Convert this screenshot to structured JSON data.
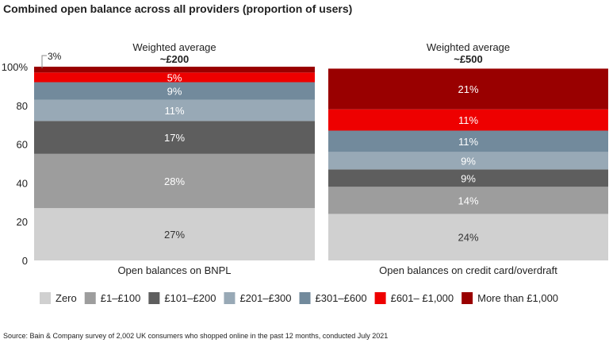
{
  "chart_data": {
    "type": "bar",
    "stacked": true,
    "title": "Combined open balance across all providers (proportion of users)",
    "source": "Source: Bain & Company survey of 2,002 UK consumers who shopped online in the past 12 months, conducted July 2021",
    "categories": [
      "Open balances on BNPL",
      "Open balances on credit card/overdraft"
    ],
    "annotations": [
      {
        "line1": "Weighted average",
        "line2": "~£200"
      },
      {
        "line1": "Weighted average",
        "line2": "~£500"
      }
    ],
    "yticks": [
      "0",
      "20",
      "40",
      "60",
      "80",
      "100%"
    ],
    "ylim": [
      0,
      100
    ],
    "grid": false,
    "legend_position": "bottom",
    "series": [
      {
        "name": "Zero",
        "color": "#d0d0d0",
        "values": [
          27,
          24
        ],
        "labels": [
          "27%",
          "24%"
        ]
      },
      {
        "name": "£1–£100",
        "color": "#9d9d9d",
        "values": [
          28,
          14
        ],
        "labels": [
          "28%",
          "14%"
        ]
      },
      {
        "name": "£101–£200",
        "color": "#5e5e5e",
        "values": [
          17,
          9
        ],
        "labels": [
          "17%",
          "9%"
        ]
      },
      {
        "name": "£201–£300",
        "color": "#98a9b6",
        "values": [
          11,
          9
        ],
        "labels": [
          "11%",
          "9%"
        ]
      },
      {
        "name": "£301–£600",
        "color": "#728a9c",
        "values": [
          9,
          11
        ],
        "labels": [
          "9%",
          "11%"
        ]
      },
      {
        "name": "£601– £1,000",
        "color": "#ee0000",
        "values": [
          5,
          11
        ],
        "labels": [
          "5%",
          "11%"
        ]
      },
      {
        "name": "More than £1,000",
        "color": "#990000",
        "values": [
          3,
          21
        ],
        "labels": [
          "3%",
          "21%"
        ]
      }
    ]
  }
}
